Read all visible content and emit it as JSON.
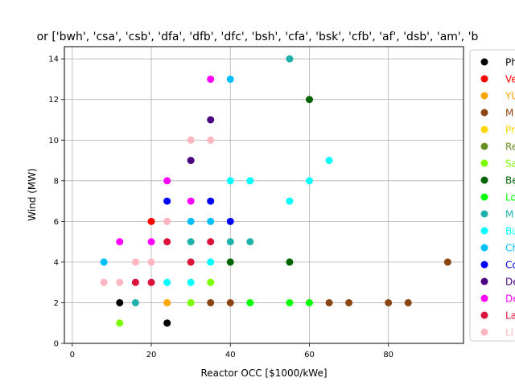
{
  "chart_data": {
    "type": "scatter",
    "title": "or ['bwh', 'csa', 'csb', 'dfa', 'dfb', 'dfc', 'bsh', 'cfa', 'bsk', 'cfb', 'af', 'dsb', 'am', 'b",
    "xlabel": "Reactor OCC [$1000/kWe]",
    "ylabel": "Wind (MW)",
    "xlim": [
      -2,
      99
    ],
    "ylim": [
      0,
      14.6
    ],
    "xticks": [
      "0",
      "20",
      "40",
      "60",
      "80"
    ],
    "xtick_values": [
      0,
      20,
      40,
      60,
      80
    ],
    "yticks": [
      "0",
      "2",
      "4",
      "6",
      "8",
      "10",
      "12",
      "14"
    ],
    "ytick_values": [
      0,
      2,
      4,
      6,
      8,
      10,
      12,
      14
    ],
    "grid": true,
    "legend_placement": "right",
    "series": [
      {
        "name": "Ph",
        "color": "#000000",
        "points": [
          [
            12,
            2
          ],
          [
            24,
            1
          ]
        ]
      },
      {
        "name": "Ve",
        "color": "#ff0000",
        "points": [
          [
            20,
            6
          ]
        ]
      },
      {
        "name": "YU",
        "color": "#ffa500",
        "points": [
          [
            24,
            2
          ]
        ]
      },
      {
        "name": "M",
        "color": "#8b4513",
        "points": [
          [
            35,
            2
          ],
          [
            40,
            2
          ],
          [
            65,
            2
          ],
          [
            70,
            2
          ],
          [
            80,
            2
          ],
          [
            85,
            2
          ],
          [
            95,
            4
          ]
        ]
      },
      {
        "name": "Pr",
        "color": "#ffd700",
        "points": []
      },
      {
        "name": "Re",
        "color": "#6b8e23",
        "points": []
      },
      {
        "name": "Sa",
        "color": "#7cfc00",
        "points": [
          [
            12,
            1
          ],
          [
            30,
            2
          ],
          [
            35,
            3
          ]
        ]
      },
      {
        "name": "Be",
        "color": "#006400",
        "points": [
          [
            40,
            4
          ],
          [
            55,
            4
          ],
          [
            60,
            12
          ]
        ]
      },
      {
        "name": "Lo",
        "color": "#00ff00",
        "points": [
          [
            45,
            2
          ],
          [
            55,
            2
          ],
          [
            60,
            2
          ]
        ]
      },
      {
        "name": "M",
        "color": "#20b2aa",
        "points": [
          [
            16,
            2
          ],
          [
            30,
            5
          ],
          [
            40,
            5
          ],
          [
            45,
            5
          ],
          [
            55,
            14
          ]
        ]
      },
      {
        "name": "Bu",
        "color": "#00ffff",
        "points": [
          [
            24,
            3
          ],
          [
            30,
            3
          ],
          [
            35,
            4
          ],
          [
            40,
            8
          ],
          [
            45,
            8
          ],
          [
            55,
            7
          ],
          [
            60,
            8
          ],
          [
            65,
            9
          ]
        ]
      },
      {
        "name": "Ch",
        "color": "#00bfff",
        "points": [
          [
            8,
            4
          ],
          [
            30,
            6
          ],
          [
            35,
            6
          ],
          [
            40,
            13
          ]
        ]
      },
      {
        "name": "Co",
        "color": "#0000ff",
        "points": [
          [
            24,
            7
          ],
          [
            35,
            7
          ],
          [
            40,
            6
          ]
        ]
      },
      {
        "name": "De",
        "color": "#4b0082",
        "points": [
          [
            30,
            9
          ],
          [
            35,
            11
          ]
        ]
      },
      {
        "name": "De",
        "color": "#ff00ff",
        "points": [
          [
            12,
            5
          ],
          [
            20,
            5
          ],
          [
            24,
            8
          ],
          [
            30,
            7
          ],
          [
            35,
            13
          ]
        ]
      },
      {
        "name": "La",
        "color": "#dc143c",
        "points": [
          [
            16,
            3
          ],
          [
            20,
            3
          ],
          [
            24,
            5
          ],
          [
            30,
            4
          ],
          [
            35,
            5
          ]
        ]
      },
      {
        "name": "Li",
        "color": "#ffb6c1",
        "points": [
          [
            8,
            3
          ],
          [
            12,
            3
          ],
          [
            16,
            4
          ],
          [
            20,
            4
          ],
          [
            24,
            6
          ],
          [
            30,
            10
          ],
          [
            35,
            10
          ]
        ]
      }
    ]
  }
}
